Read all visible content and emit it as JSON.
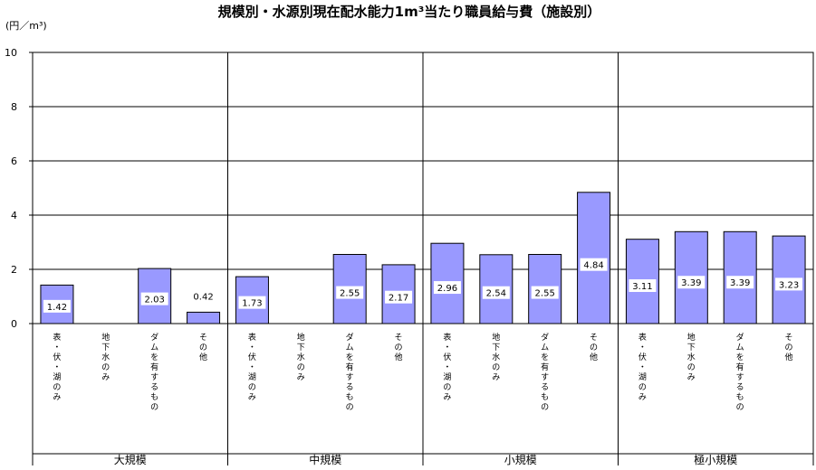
{
  "title": "規模別・水源別現在配水能力1m³当たり職員給与費（施設別）",
  "unit_label": "(円／m³)",
  "chart_data": {
    "type": "bar",
    "title": "規模別・水源別現在配水能力1m³当たり職員給与費（施設別）",
    "ylabel": "(円／m³)",
    "ylim": [
      0,
      10
    ],
    "yticks": [
      "0",
      "2",
      "4",
      "6",
      "8",
      "10"
    ],
    "grid": true,
    "legend": "none",
    "bar_color": "#9999ff",
    "categories": [
      "表・伏・湖のみ",
      "地下水のみ",
      "ダムを有するもの",
      "その他"
    ],
    "groups": [
      {
        "name": "大規模",
        "values": [
          1.42,
          null,
          2.03,
          0.42
        ],
        "labels": [
          "1.42",
          "",
          "2.03",
          "0.42"
        ]
      },
      {
        "name": "中規模",
        "values": [
          1.73,
          null,
          2.55,
          2.17
        ],
        "labels": [
          "1.73",
          "",
          "2.55",
          "2.17"
        ]
      },
      {
        "name": "小規模",
        "values": [
          2.96,
          2.54,
          2.55,
          4.84
        ],
        "labels": [
          "2.96",
          "2.54",
          "2.55",
          "4.84"
        ]
      },
      {
        "name": "極小規模",
        "values": [
          3.11,
          3.39,
          3.39,
          3.23
        ],
        "labels": [
          "3.11",
          "3.39",
          "3.39",
          "3.23"
        ]
      }
    ]
  }
}
